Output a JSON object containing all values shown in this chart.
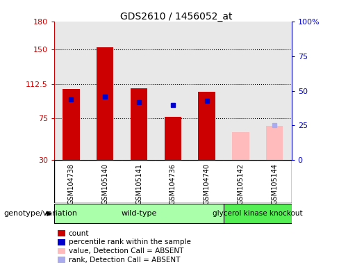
{
  "title": "GDS2610 / 1456052_at",
  "samples": [
    "GSM104738",
    "GSM105140",
    "GSM105141",
    "GSM104736",
    "GSM104740",
    "GSM105142",
    "GSM105144"
  ],
  "n_wildtype": 5,
  "count_values": [
    107,
    152,
    108,
    77,
    104,
    null,
    null
  ],
  "count_absent_values": [
    null,
    null,
    null,
    null,
    null,
    60,
    67
  ],
  "rank_values": [
    44,
    46,
    42,
    40,
    43,
    null,
    null
  ],
  "rank_absent_values": [
    null,
    null,
    null,
    null,
    null,
    null,
    25
  ],
  "ylim_left": [
    30,
    180
  ],
  "ylim_right": [
    0,
    100
  ],
  "yticks_left": [
    30,
    75,
    112.5,
    150,
    180
  ],
  "yticks_right": [
    0,
    25,
    50,
    75,
    100
  ],
  "left_tick_color": "#cc0000",
  "right_tick_color": "#0000cc",
  "bar_width": 0.5,
  "bar_color_present": "#cc0000",
  "bar_color_absent": "#ffbbbb",
  "rank_color_present": "#0000cc",
  "rank_color_absent": "#aaaaee",
  "plot_bg_color": "#e8e8e8",
  "sample_label_bg": "#cccccc",
  "wt_color": "#aaffaa",
  "gk_color": "#55ee55",
  "grid_dotted_yticks": [
    75,
    112.5,
    150
  ],
  "legend_items": [
    {
      "label": "count",
      "color": "#cc0000"
    },
    {
      "label": "percentile rank within the sample",
      "color": "#0000cc"
    },
    {
      "label": "value, Detection Call = ABSENT",
      "color": "#ffbbbb"
    },
    {
      "label": "rank, Detection Call = ABSENT",
      "color": "#aaaaee"
    }
  ]
}
